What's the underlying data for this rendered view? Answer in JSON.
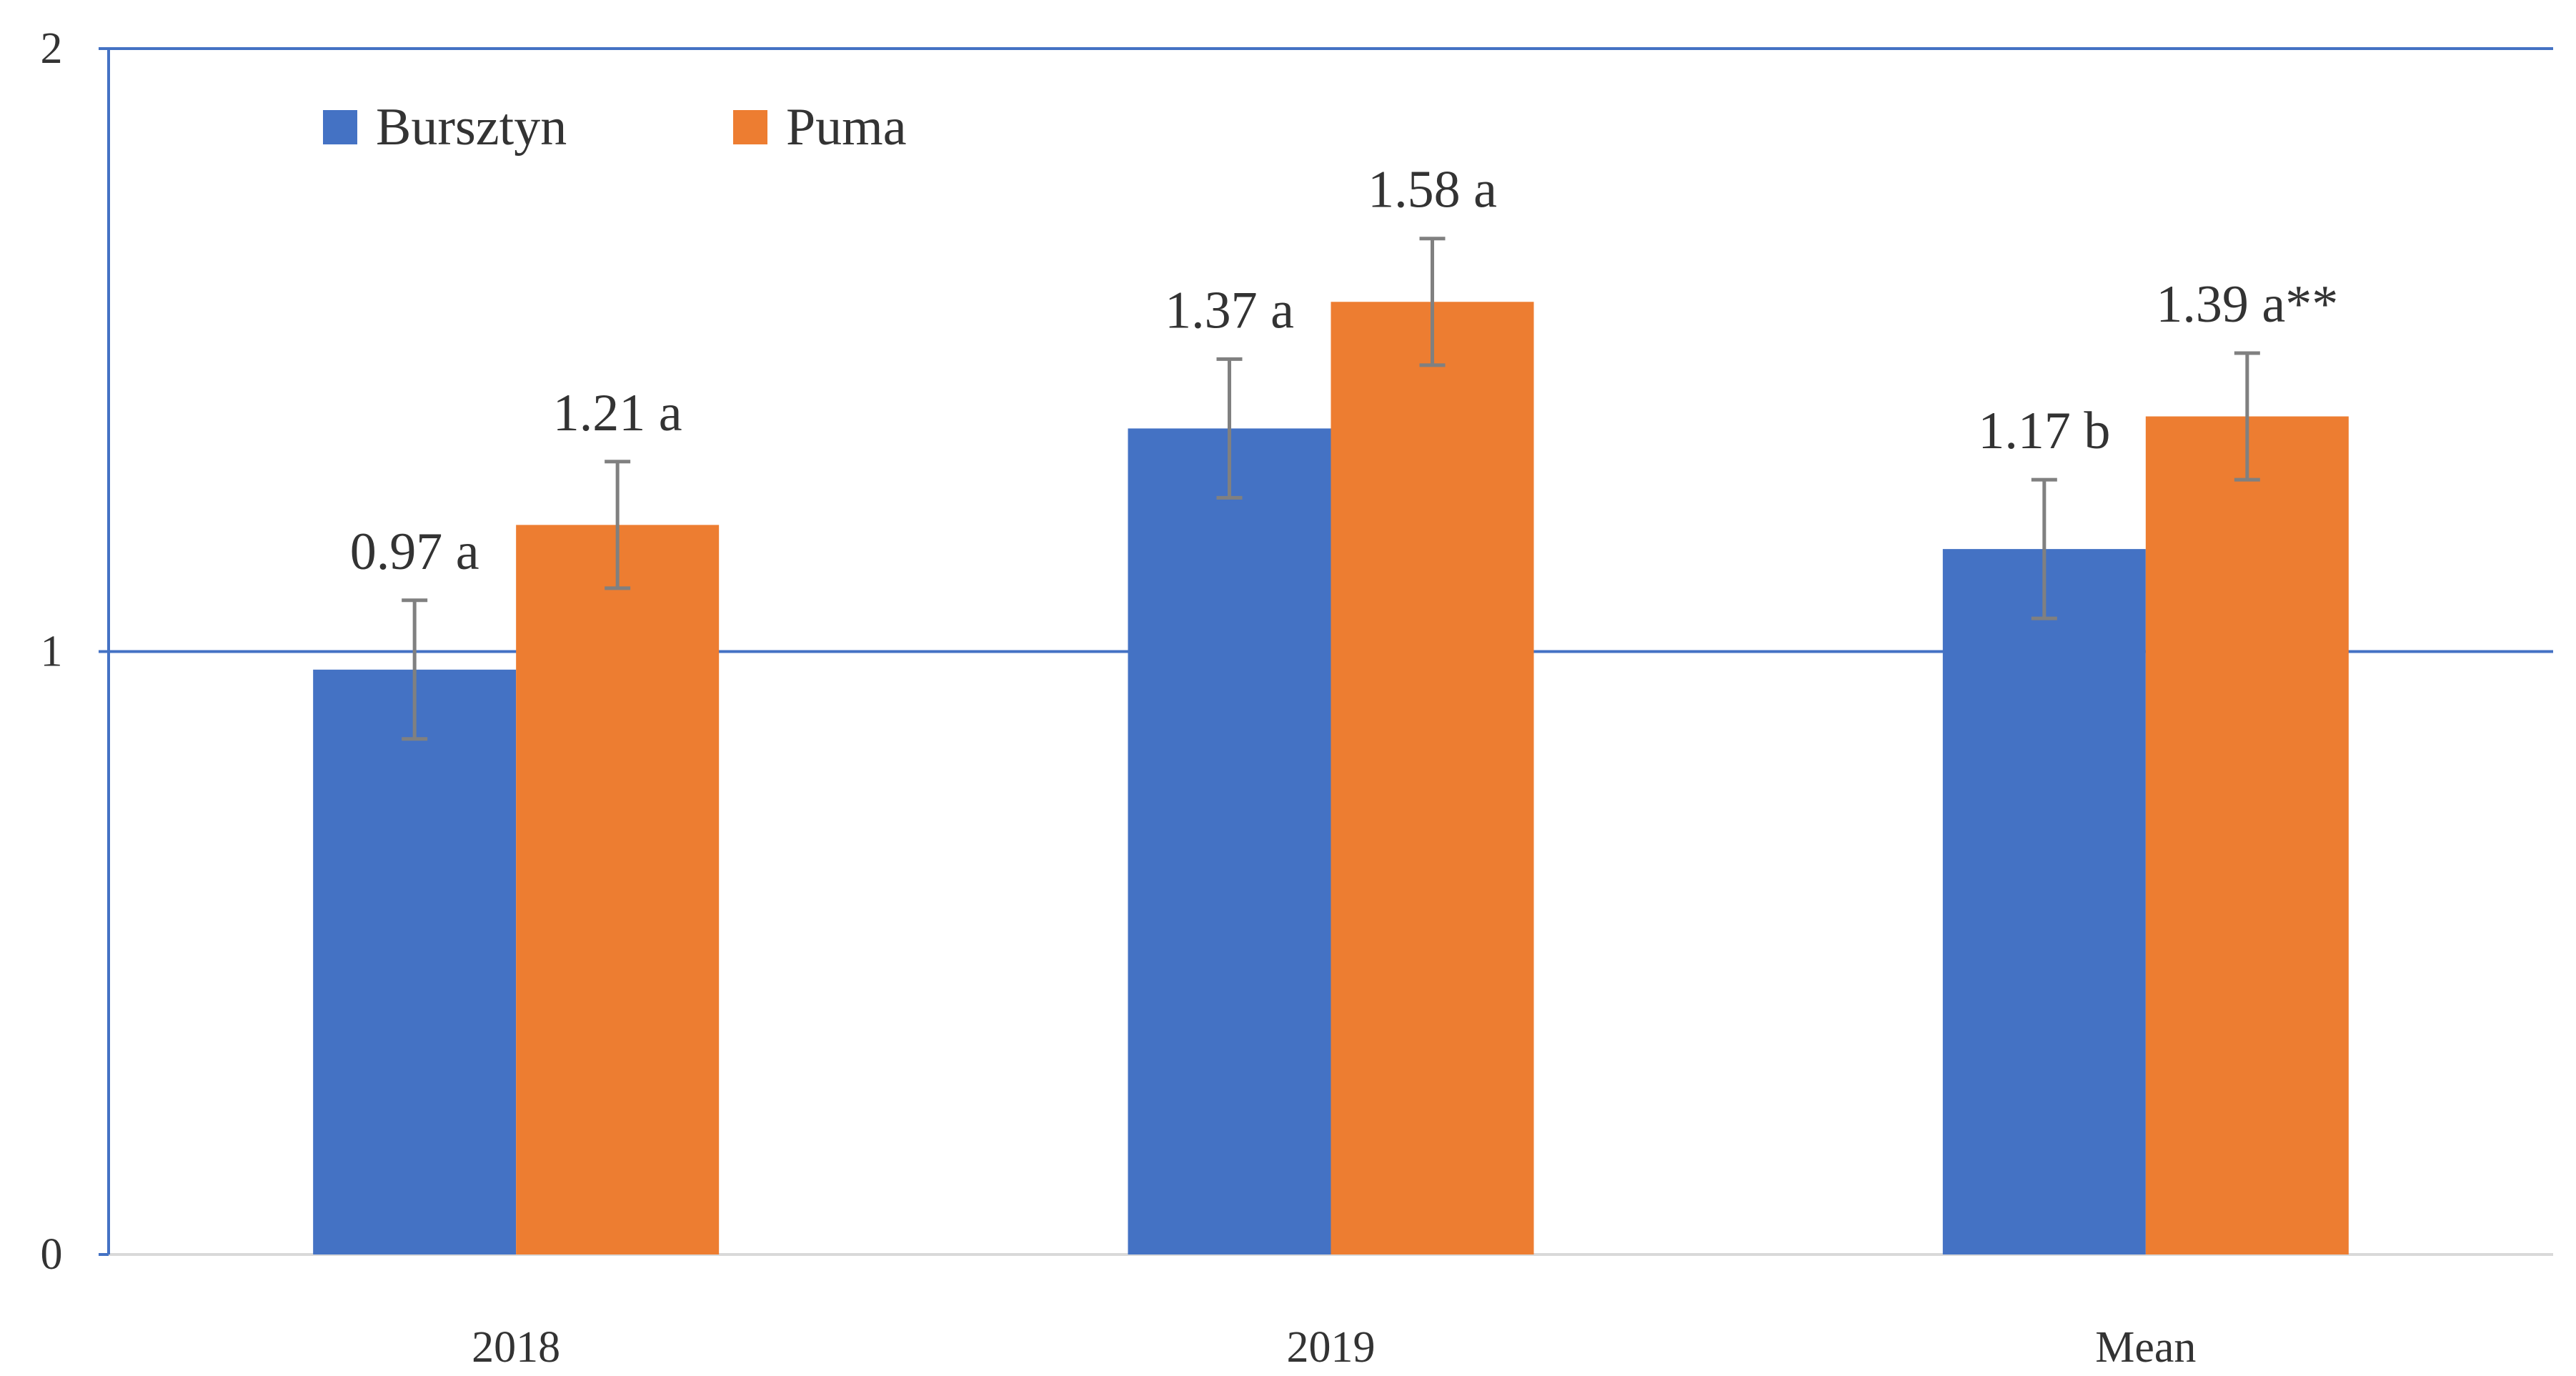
{
  "chart_data": {
    "type": "bar",
    "title": "",
    "xlabel": "",
    "ylabel": "",
    "categories": [
      "2018",
      "2019",
      "Mean"
    ],
    "series": [
      {
        "name": "Bursztyn",
        "color": "#4472C4",
        "values": [
          0.97,
          1.37,
          1.17
        ],
        "errors": [
          0.115,
          0.115,
          0.115
        ],
        "labels": [
          "0.97 a",
          "1.37 a",
          "1.17 b"
        ]
      },
      {
        "name": "Puma",
        "color": "#ED7D31",
        "values": [
          1.21,
          1.58,
          1.39
        ],
        "errors": [
          0.105,
          0.105,
          0.105
        ],
        "labels": [
          "1.21 a",
          "1.58 a",
          "1.39 a**"
        ]
      }
    ],
    "ylim": [
      0,
      2
    ],
    "yticks": [
      "0",
      "1",
      "2"
    ],
    "ytick_values": [
      0,
      1,
      2
    ],
    "gridlines_at": [
      1,
      2
    ],
    "legend_position": "top-left",
    "gridline_color": "#4472C4",
    "axis_color": "#4472C4",
    "baseline_color": "#D9D9D9",
    "errorbar_color": "#808080"
  }
}
